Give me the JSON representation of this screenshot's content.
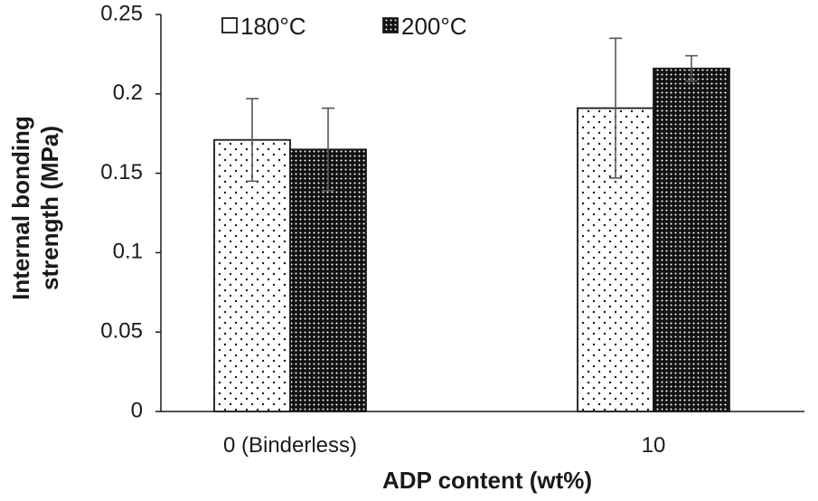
{
  "chart_data": {
    "type": "bar",
    "title": "",
    "categories": [
      "0 (Binderless)",
      "10"
    ],
    "series": [
      {
        "name": "180°C",
        "values": [
          0.171,
          0.191
        ],
        "errors": [
          0.026,
          0.044
        ],
        "fill": "sparse-dots"
      },
      {
        "name": "200°C",
        "values": [
          0.165,
          0.216
        ],
        "errors": [
          0.026,
          0.008
        ],
        "fill": "dense-dots"
      }
    ],
    "xlabel": "ADP content (wt%)",
    "ylabel_line1": "Internal bonding",
    "ylabel_line2": "strength (MPa)",
    "ylim": [
      0,
      0.25
    ],
    "yticks": [
      "0",
      "0.05",
      "0.1",
      "0.15",
      "0.2",
      "0.25"
    ],
    "ytick_values": [
      0,
      0.05,
      0.1,
      0.15,
      0.2,
      0.25
    ],
    "grid": false,
    "legend_position": "top-left",
    "colors": {
      "ink": "#1a1a1a",
      "bar_bg": "#ffffff",
      "error_bar": "#555555"
    }
  }
}
